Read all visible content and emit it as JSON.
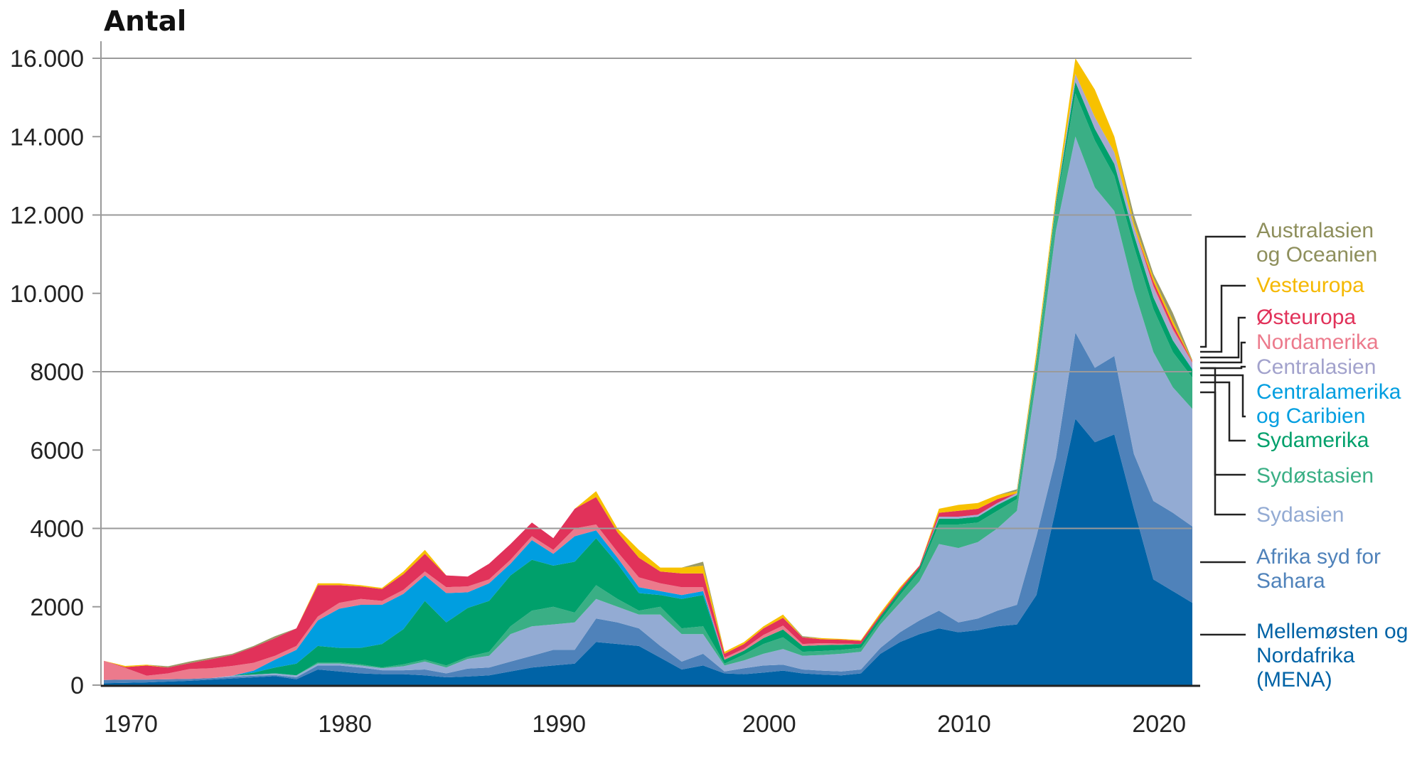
{
  "chart_data": {
    "type": "area",
    "stacked": true,
    "title": "Antal",
    "xlabel": "",
    "ylabel": "",
    "ylim": [
      0,
      16300
    ],
    "xlim": [
      1969,
      2022
    ],
    "grid": true,
    "legend_placement": "right",
    "yticks": [
      {
        "value": 0,
        "label": "0"
      },
      {
        "value": 2000,
        "label": "2000"
      },
      {
        "value": 4000,
        "label": "4000"
      },
      {
        "value": 6000,
        "label": "6000"
      },
      {
        "value": 8000,
        "label": "8000"
      },
      {
        "value": 10000,
        "label": "10.000"
      },
      {
        "value": 12000,
        "label": "12.000"
      },
      {
        "value": 14000,
        "label": "14.000"
      },
      {
        "value": 16000,
        "label": "16.000"
      }
    ],
    "gridlines": [
      4000,
      8000,
      12000,
      16000
    ],
    "xticks": [
      {
        "value": 1970,
        "label": "1970"
      },
      {
        "value": 1980,
        "label": "1980"
      },
      {
        "value": 1990,
        "label": "1990"
      },
      {
        "value": 2000,
        "label": "2000"
      },
      {
        "value": 2010,
        "label": "2010"
      },
      {
        "value": 2020,
        "label": "2020"
      }
    ],
    "x_start": 1969,
    "series": [
      {
        "name": "Mellemøsten og Nordafrika (MENA)",
        "label_lines": [
          "Mellemøsten og",
          "Nordafrika",
          "(MENA)"
        ],
        "color": "#0063a6",
        "label_color": "#0063a6",
        "values": [
          50,
          60,
          70,
          90,
          110,
          140,
          170,
          200,
          230,
          150,
          400,
          350,
          300,
          280,
          280,
          250,
          200,
          220,
          250,
          350,
          450,
          500,
          550,
          1100,
          1050,
          1000,
          700,
          400,
          500,
          300,
          280,
          320,
          370,
          300,
          270,
          250,
          300,
          800,
          1100,
          1300,
          1450,
          1350,
          1400,
          1500,
          1550,
          2300,
          4500,
          6800,
          6200,
          6400,
          4500,
          2700,
          2400,
          2100
        ]
      },
      {
        "name": "Afrika syd for Sahara",
        "label_lines": [
          "Afrika syd for",
          "Sahara"
        ],
        "color": "#4f82ba",
        "label_color": "#4f82ba",
        "values": [
          80,
          80,
          70,
          60,
          50,
          40,
          40,
          40,
          30,
          50,
          100,
          150,
          150,
          100,
          100,
          150,
          100,
          200,
          200,
          250,
          300,
          400,
          350,
          600,
          550,
          450,
          300,
          200,
          300,
          50,
          150,
          180,
          150,
          100,
          100,
          100,
          100,
          150,
          250,
          350,
          450,
          250,
          300,
          400,
          500,
          1500,
          1300,
          2200,
          1900,
          2000,
          1400,
          2000,
          2000,
          1950
        ]
      },
      {
        "name": "Sydasien",
        "label_lines": [
          "Sydasien"
        ],
        "color": "#93abd3",
        "label_color": "#93abd3",
        "values": [
          0,
          0,
          0,
          0,
          0,
          0,
          30,
          30,
          40,
          50,
          50,
          50,
          50,
          50,
          100,
          200,
          150,
          250,
          300,
          700,
          750,
          650,
          700,
          500,
          400,
          350,
          800,
          700,
          500,
          150,
          200,
          300,
          400,
          350,
          400,
          450,
          450,
          600,
          750,
          1000,
          1700,
          1900,
          1950,
          2100,
          2400,
          4000,
          5800,
          5000,
          4600,
          3700,
          4200,
          3800,
          3200,
          3000
        ]
      },
      {
        "name": "Sydøstasien",
        "label_lines": [
          "Sydøstasien"
        ],
        "color": "#3aaf85",
        "label_color": "#3aaf85",
        "values": [
          0,
          0,
          0,
          0,
          0,
          0,
          0,
          0,
          0,
          0,
          30,
          30,
          30,
          20,
          50,
          50,
          50,
          50,
          100,
          200,
          400,
          450,
          250,
          350,
          200,
          100,
          200,
          150,
          200,
          50,
          150,
          250,
          300,
          100,
          100,
          100,
          100,
          100,
          200,
          250,
          500,
          600,
          500,
          450,
          300,
          400,
          600,
          1100,
          1200,
          900,
          1100,
          1100,
          900,
          800
        ]
      },
      {
        "name": "Sydamerika",
        "label_lines": [
          "Sydamerika"
        ],
        "color": "#00a06b",
        "label_color": "#00a06b",
        "values": [
          0,
          0,
          0,
          0,
          0,
          0,
          0,
          50,
          150,
          300,
          420,
          370,
          420,
          600,
          900,
          1500,
          1100,
          1250,
          1300,
          1300,
          1300,
          1050,
          1300,
          1200,
          900,
          450,
          300,
          750,
          800,
          100,
          100,
          150,
          200,
          150,
          150,
          130,
          100,
          100,
          100,
          100,
          150,
          150,
          150,
          150,
          100,
          100,
          100,
          300,
          300,
          300,
          300,
          300,
          300,
          200
        ]
      },
      {
        "name": "Centralamerika og Caribien",
        "label_lines": [
          "Centralamerika",
          "og Caribien"
        ],
        "color": "#009ee0",
        "label_color": "#009ee0",
        "values": [
          0,
          0,
          0,
          0,
          0,
          0,
          0,
          50,
          200,
          350,
          650,
          1000,
          1100,
          1000,
          900,
          650,
          750,
          400,
          450,
          300,
          500,
          300,
          650,
          200,
          150,
          150,
          100,
          100,
          100,
          0,
          0,
          0,
          0,
          0,
          0,
          0,
          0,
          0,
          0,
          0,
          0,
          0,
          0,
          0,
          0,
          0,
          0,
          0,
          0,
          0,
          0,
          0,
          0,
          20
        ]
      },
      {
        "name": "Centralasien",
        "label_lines": [
          "Centralasien"
        ],
        "color": "#a9a9d1",
        "label_color": "#a2a2cc",
        "values": [
          0,
          0,
          0,
          0,
          0,
          0,
          0,
          0,
          0,
          0,
          0,
          0,
          0,
          0,
          0,
          0,
          0,
          0,
          0,
          0,
          0,
          0,
          0,
          0,
          0,
          0,
          0,
          0,
          0,
          0,
          0,
          0,
          0,
          0,
          0,
          0,
          0,
          0,
          0,
          0,
          50,
          50,
          50,
          50,
          50,
          50,
          50,
          200,
          300,
          300,
          200,
          250,
          250,
          150
        ]
      },
      {
        "name": "Nordamerika",
        "label_lines": [
          "Nordamerika"
        ],
        "color": "#ec7a8c",
        "label_color": "#ec7a8c",
        "values": [
          490,
          300,
          100,
          150,
          250,
          250,
          250,
          200,
          100,
          100,
          100,
          150,
          150,
          100,
          100,
          100,
          150,
          150,
          100,
          100,
          100,
          100,
          200,
          150,
          150,
          250,
          200,
          200,
          100,
          50,
          50,
          80,
          100,
          50,
          50,
          30,
          0,
          0,
          0,
          0,
          0,
          0,
          0,
          0,
          0,
          0,
          0,
          0,
          0,
          0,
          0,
          50,
          50,
          20
        ]
      },
      {
        "name": "Østeuropa",
        "label_lines": [
          "Østeuropa"
        ],
        "color": "#e1325a",
        "label_color": "#e1325a",
        "values": [
          0,
          20,
          260,
          150,
          150,
          230,
          280,
          400,
          450,
          450,
          800,
          450,
          320,
          300,
          400,
          450,
          300,
          250,
          400,
          400,
          350,
          300,
          500,
          700,
          500,
          500,
          300,
          350,
          350,
          100,
          120,
          170,
          200,
          170,
          100,
          100,
          80,
          50,
          50,
          50,
          100,
          150,
          150,
          100,
          0,
          0,
          0,
          0,
          0,
          0,
          0,
          100,
          100,
          20
        ]
      },
      {
        "name": "Vesteuropa",
        "label_lines": [
          "Vesteuropa"
        ],
        "color": "#f7c100",
        "label_color": "#f5b800",
        "values": [
          0,
          30,
          20,
          0,
          0,
          0,
          0,
          0,
          0,
          0,
          50,
          50,
          30,
          30,
          70,
          100,
          0,
          0,
          0,
          0,
          0,
          0,
          0,
          150,
          100,
          200,
          100,
          150,
          200,
          50,
          50,
          50,
          80,
          0,
          30,
          20,
          20,
          50,
          50,
          0,
          100,
          150,
          150,
          100,
          50,
          150,
          150,
          400,
          700,
          400,
          100,
          100,
          100,
          20
        ]
      },
      {
        "name": "Australasien og Oceanien",
        "label_lines": [
          "Australasien",
          "og Oceanien"
        ],
        "color": "#999a66",
        "label_color": "#8e8f5c",
        "values": [
          0,
          0,
          0,
          30,
          40,
          40,
          30,
          30,
          50,
          0,
          0,
          0,
          0,
          0,
          0,
          0,
          0,
          0,
          0,
          0,
          0,
          0,
          0,
          0,
          0,
          0,
          0,
          0,
          100,
          0,
          0,
          0,
          0,
          30,
          0,
          0,
          0,
          0,
          0,
          0,
          0,
          0,
          0,
          0,
          50,
          0,
          0,
          0,
          0,
          0,
          200,
          100,
          200,
          20
        ]
      }
    ]
  }
}
